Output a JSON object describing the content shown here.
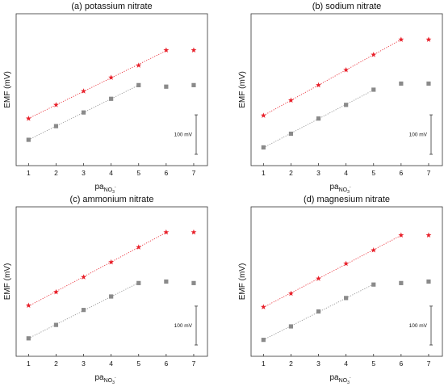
{
  "chart_data": [
    {
      "type": "scatter",
      "title": "(a) potassium nitrate",
      "ylabel": "EMF (mV)",
      "xlabel_main": "pa",
      "xlabel_sub": "NO",
      "xlabel_subsub": "3",
      "xlabel_sup": "-",
      "x": [
        1,
        2,
        3,
        4,
        5,
        6,
        7
      ],
      "xlim": [
        0.55,
        7.5
      ],
      "ylim": [
        0,
        100
      ],
      "scale_bar_label": "100 mV",
      "scale_bar_value": 26,
      "series": [
        {
          "marker": "star",
          "color": "#e8202a",
          "values": [
            31,
            40,
            49,
            58,
            66,
            76,
            76
          ],
          "fit_points": 6
        },
        {
          "marker": "square",
          "color": "#8a8a8a",
          "values": [
            17,
            26,
            35,
            44,
            53,
            52,
            53
          ],
          "fit_points": 5
        }
      ]
    },
    {
      "type": "scatter",
      "title": "(b) sodium nitrate",
      "ylabel": "EMF (mV)",
      "xlabel_main": "pa",
      "xlabel_sub": "NO",
      "xlabel_subsub": "3",
      "xlabel_sup": "-",
      "x": [
        1,
        2,
        3,
        4,
        5,
        6,
        7
      ],
      "xlim": [
        0.55,
        7.5
      ],
      "ylim": [
        0,
        100
      ],
      "scale_bar_label": "100 mV",
      "scale_bar_value": 26,
      "series": [
        {
          "marker": "star",
          "color": "#e8202a",
          "values": [
            33,
            43,
            53,
            63,
            73,
            83,
            83
          ],
          "fit_points": 6
        },
        {
          "marker": "square",
          "color": "#8a8a8a",
          "values": [
            12,
            21,
            31,
            40,
            50,
            54,
            54
          ],
          "fit_points": 5
        }
      ]
    },
    {
      "type": "scatter",
      "title": "(c) ammonium nitrate",
      "ylabel": "EMF (mV)",
      "xlabel_main": "pa",
      "xlabel_sub": "NO",
      "xlabel_subsub": "3",
      "xlabel_sup": "-",
      "x": [
        1,
        2,
        3,
        4,
        5,
        6,
        7
      ],
      "xlim": [
        0.55,
        7.5
      ],
      "ylim": [
        0,
        100
      ],
      "scale_bar_label": "100 mV",
      "scale_bar_value": 26,
      "series": [
        {
          "marker": "star",
          "color": "#e8202a",
          "values": [
            34,
            43,
            53,
            63,
            73,
            83,
            83
          ],
          "fit_points": 6
        },
        {
          "marker": "square",
          "color": "#8a8a8a",
          "values": [
            12,
            21,
            31,
            40,
            49,
            50,
            49
          ],
          "fit_points": 5
        }
      ]
    },
    {
      "type": "scatter",
      "title": "(d) magnesium nitrate",
      "ylabel": "EMF (mV)",
      "xlabel_main": "pa",
      "xlabel_sub": "NO",
      "xlabel_subsub": "3",
      "xlabel_sup": "-",
      "x": [
        1,
        2,
        3,
        4,
        5,
        6,
        7
      ],
      "xlim": [
        0.55,
        7.5
      ],
      "ylim": [
        0,
        100
      ],
      "scale_bar_label": "100 mV",
      "scale_bar_value": 26,
      "series": [
        {
          "marker": "star",
          "color": "#e8202a",
          "values": [
            33,
            42,
            52,
            62,
            71,
            81,
            81
          ],
          "fit_points": 6
        },
        {
          "marker": "square",
          "color": "#8a8a8a",
          "values": [
            11,
            20,
            30,
            39,
            48,
            49,
            50
          ],
          "fit_points": 5
        }
      ]
    }
  ]
}
